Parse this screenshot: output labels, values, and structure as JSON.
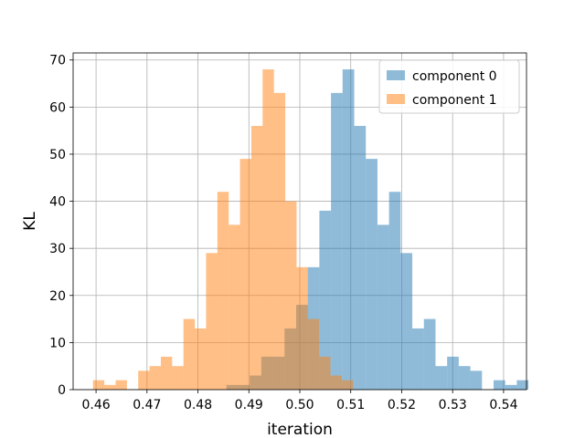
{
  "chart_data": {
    "type": "histogram",
    "xlabel": "iteration",
    "ylabel": "KL",
    "xlim": [
      0.4555,
      0.5445
    ],
    "ylim": [
      0,
      71.5
    ],
    "xticks": [
      0.46,
      0.47,
      0.48,
      0.49,
      0.5,
      0.51,
      0.52,
      0.53,
      0.54
    ],
    "xtick_labels": [
      "0.46",
      "0.47",
      "0.48",
      "0.49",
      "0.50",
      "0.51",
      "0.52",
      "0.53",
      "0.54"
    ],
    "yticks": [
      0,
      10,
      20,
      30,
      40,
      50,
      60,
      70
    ],
    "ytick_labels": [
      "0",
      "10",
      "20",
      "30",
      "40",
      "50",
      "60",
      "70"
    ],
    "grid": true,
    "legend_position": "top-right",
    "series": [
      {
        "name": "component 0",
        "color": "#1f77b4",
        "opacity": 0.5,
        "bin_start": 0.4856,
        "bin_width": 0.00228,
        "counts": [
          1,
          1,
          3,
          7,
          7,
          13,
          18,
          26,
          38,
          63,
          68,
          56,
          49,
          35,
          42,
          29,
          13,
          15,
          5,
          7,
          5,
          4,
          0,
          2,
          1,
          2
        ]
      },
      {
        "name": "component 1",
        "color": "#ff7f0e",
        "opacity": 0.5,
        "bin_start": 0.4594,
        "bin_width": 0.00222,
        "counts": [
          2,
          1,
          2,
          0,
          4,
          5,
          7,
          5,
          15,
          13,
          29,
          42,
          35,
          49,
          56,
          68,
          63,
          40,
          26,
          15,
          7,
          3,
          2
        ]
      }
    ]
  }
}
